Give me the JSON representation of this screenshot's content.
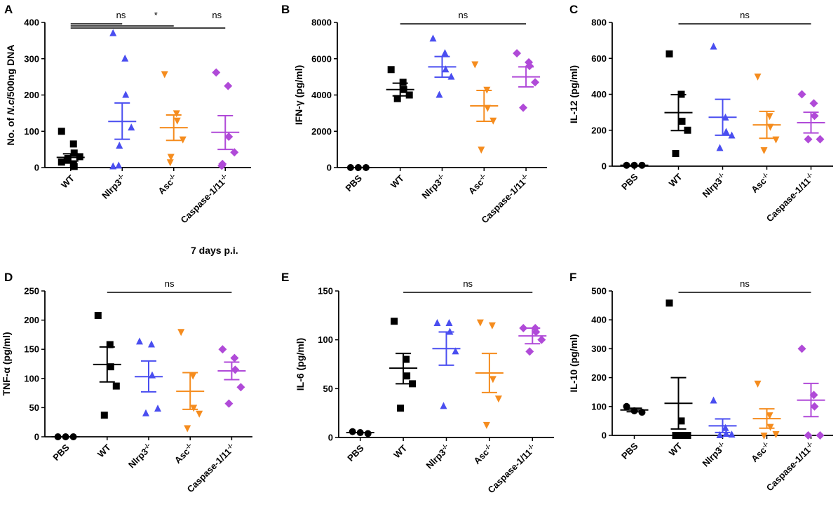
{
  "figure": {
    "footer_label": "7 days p.i."
  },
  "chart_data": [
    {
      "type": "scatter",
      "panel": "A",
      "ylabel": "No. of N.c/500ng DNA",
      "ylim": [
        0,
        400
      ],
      "yticks": [
        0,
        100,
        200,
        300,
        400
      ],
      "categories": [
        {
          "name": "WT",
          "color": "#000000",
          "marker": "square",
          "mean": 28,
          "sem": [
            18,
            38
          ],
          "points": [
            100,
            65,
            40,
            30,
            25,
            20,
            15,
            8,
            3
          ]
        },
        {
          "name": "Nlrp3-/-",
          "base": "Nlrp3",
          "sup": "-/-",
          "color": "#4a4ef0",
          "marker": "triangle-up",
          "mean": 127,
          "sem": [
            78,
            178
          ],
          "points": [
            370,
            300,
            200,
            110,
            60,
            5,
            3
          ]
        },
        {
          "name": "Asc-/-",
          "base": "Asc",
          "sup": "-/-",
          "color": "#f58c1e",
          "marker": "triangle-down",
          "mean": 110,
          "sem": [
            75,
            145
          ],
          "points": [
            258,
            150,
            130,
            78,
            30,
            15
          ]
        },
        {
          "name": "Caspase-1/11-/-",
          "base": "Caspase-1/11",
          "sup": "-/-",
          "color": "#b04ad8",
          "marker": "diamond",
          "mean": 97,
          "sem": [
            50,
            143
          ],
          "points": [
            262,
            225,
            85,
            42,
            10,
            5
          ]
        }
      ],
      "comparisons": [
        {
          "from": 0,
          "to": 1,
          "label": "ns",
          "level": 0
        },
        {
          "from": 0,
          "to": 2,
          "label": "*",
          "level": 1
        },
        {
          "from": 0,
          "to": 3,
          "label": "ns",
          "level": 2
        }
      ]
    },
    {
      "type": "scatter",
      "panel": "B",
      "ylabel": "IFN-γ (pg/ml)",
      "ylim": [
        0,
        8000
      ],
      "yticks": [
        0,
        2000,
        4000,
        6000,
        8000
      ],
      "categories": [
        {
          "name": "PBS",
          "color": "#000000",
          "marker": "circle",
          "mean": 0,
          "sem": [
            0,
            0
          ],
          "points": [
            0,
            0,
            0
          ]
        },
        {
          "name": "WT",
          "color": "#000000",
          "marker": "square",
          "mean": 4300,
          "sem": [
            3950,
            4650
          ],
          "points": [
            5400,
            4700,
            4300,
            4000,
            3800
          ]
        },
        {
          "name": "Nlrp3-/-",
          "base": "Nlrp3",
          "sup": "-/-",
          "color": "#4a4ef0",
          "marker": "triangle-up",
          "mean": 5550,
          "sem": [
            4980,
            6120
          ],
          "points": [
            7100,
            6300,
            5400,
            5000,
            4000
          ]
        },
        {
          "name": "Asc-/-",
          "base": "Asc",
          "sup": "-/-",
          "color": "#f58c1e",
          "marker": "triangle-down",
          "mean": 3400,
          "sem": [
            2550,
            4250
          ],
          "points": [
            5700,
            4300,
            3300,
            2600,
            1000
          ]
        },
        {
          "name": "Caspase-1/11-/-",
          "base": "Caspase-1/11",
          "sup": "-/-",
          "color": "#b04ad8",
          "marker": "diamond",
          "mean": 5000,
          "sem": [
            4450,
            5550
          ],
          "points": [
            6300,
            5800,
            5600,
            4700,
            3300
          ]
        }
      ],
      "comparisons": [
        {
          "from": 1,
          "to": 4,
          "label": "ns",
          "level": 0
        }
      ]
    },
    {
      "type": "scatter",
      "panel": "C",
      "ylabel": "IL-12 (pg/ml)",
      "ylim": [
        0,
        800
      ],
      "yticks": [
        0,
        200,
        400,
        600,
        800
      ],
      "categories": [
        {
          "name": "PBS",
          "color": "#000000",
          "marker": "circle",
          "mean": 5,
          "sem": [
            5,
            5
          ],
          "points": [
            5,
            5,
            5
          ]
        },
        {
          "name": "WT",
          "color": "#000000",
          "marker": "square",
          "mean": 298,
          "sem": [
            198,
            398
          ],
          "points": [
            625,
            400,
            250,
            200,
            70
          ]
        },
        {
          "name": "Nlrp3-/-",
          "base": "Nlrp3",
          "sup": "-/-",
          "color": "#4a4ef0",
          "marker": "triangle-up",
          "mean": 272,
          "sem": [
            172,
            372
          ],
          "points": [
            665,
            270,
            190,
            170,
            100
          ]
        },
        {
          "name": "Asc-/-",
          "base": "Asc",
          "sup": "-/-",
          "color": "#f58c1e",
          "marker": "triangle-down",
          "mean": 230,
          "sem": [
            155,
            305
          ],
          "points": [
            500,
            280,
            220,
            150,
            90
          ]
        },
        {
          "name": "Caspase-1/11-/-",
          "base": "Caspase-1/11",
          "sup": "-/-",
          "color": "#b04ad8",
          "marker": "diamond",
          "mean": 242,
          "sem": [
            185,
            300
          ],
          "points": [
            400,
            350,
            280,
            150,
            150
          ]
        }
      ],
      "comparisons": [
        {
          "from": 1,
          "to": 4,
          "label": "ns",
          "level": 0
        }
      ]
    },
    {
      "type": "scatter",
      "panel": "D",
      "ylabel": "TNF-α (pg/ml)",
      "ylim": [
        0,
        250
      ],
      "yticks": [
        0,
        50,
        100,
        150,
        200,
        250
      ],
      "categories": [
        {
          "name": "PBS",
          "color": "#000000",
          "marker": "circle",
          "mean": 0,
          "sem": [
            0,
            0
          ],
          "points": [
            0,
            0,
            0
          ]
        },
        {
          "name": "WT",
          "color": "#000000",
          "marker": "square",
          "mean": 124,
          "sem": [
            94,
            154
          ],
          "points": [
            208,
            158,
            120,
            87,
            37
          ]
        },
        {
          "name": "Nlrp3-/-",
          "base": "Nlrp3",
          "sup": "-/-",
          "color": "#4a4ef0",
          "marker": "triangle-up",
          "mean": 103,
          "sem": [
            77,
            130
          ],
          "points": [
            163,
            158,
            105,
            48,
            40
          ]
        },
        {
          "name": "Asc-/-",
          "base": "Asc",
          "sup": "-/-",
          "color": "#f58c1e",
          "marker": "triangle-down",
          "mean": 78,
          "sem": [
            47,
            110
          ],
          "points": [
            180,
            105,
            50,
            40,
            15
          ]
        },
        {
          "name": "Caspase-1/11-/-",
          "base": "Caspase-1/11",
          "sup": "-/-",
          "color": "#b04ad8",
          "marker": "diamond",
          "mean": 113,
          "sem": [
            98,
            128
          ],
          "points": [
            150,
            135,
            115,
            85,
            57
          ]
        }
      ],
      "comparisons": [
        {
          "from": 1,
          "to": 4,
          "label": "ns",
          "level": 0
        }
      ]
    },
    {
      "type": "scatter",
      "panel": "E",
      "ylabel": "IL-6 (pg/ml)",
      "ylim": [
        0,
        150
      ],
      "yticks": [
        0,
        50,
        100,
        150
      ],
      "categories": [
        {
          "name": "PBS",
          "color": "#000000",
          "marker": "circle",
          "mean": 5,
          "sem": [
            5,
            5
          ],
          "points": [
            6,
            5,
            4
          ]
        },
        {
          "name": "WT",
          "color": "#000000",
          "marker": "square",
          "mean": 71,
          "sem": [
            55,
            86
          ],
          "points": [
            119,
            80,
            63,
            55,
            30
          ]
        },
        {
          "name": "Nlrp3-/-",
          "base": "Nlrp3",
          "sup": "-/-",
          "color": "#4a4ef0",
          "marker": "triangle-up",
          "mean": 91,
          "sem": [
            74,
            108
          ],
          "points": [
            117,
            117,
            108,
            88,
            32
          ]
        },
        {
          "name": "Asc-/-",
          "base": "Asc",
          "sup": "-/-",
          "color": "#f58c1e",
          "marker": "triangle-down",
          "mean": 66,
          "sem": [
            46,
            86
          ],
          "points": [
            118,
            115,
            60,
            40,
            13
          ]
        },
        {
          "name": "Caspase-1/11-/-",
          "base": "Caspase-1/11",
          "sup": "-/-",
          "color": "#b04ad8",
          "marker": "diamond",
          "mean": 104,
          "sem": [
            96,
            112
          ],
          "points": [
            112,
            112,
            108,
            100,
            88
          ]
        }
      ],
      "comparisons": [
        {
          "from": 1,
          "to": 4,
          "label": "ns",
          "level": 0
        }
      ]
    },
    {
      "type": "scatter",
      "panel": "F",
      "ylabel": "IL-10 (pg/ml)",
      "ylim": [
        0,
        500
      ],
      "yticks": [
        0,
        100,
        200,
        300,
        400,
        500
      ],
      "categories": [
        {
          "name": "PBS",
          "color": "#000000",
          "marker": "circle",
          "mean": 88,
          "sem": [
            82,
            94
          ],
          "points": [
            100,
            85,
            80
          ]
        },
        {
          "name": "WT",
          "color": "#000000",
          "marker": "square",
          "mean": 111,
          "sem": [
            22,
            200
          ],
          "points": [
            458,
            50,
            0,
            0,
            0
          ]
        },
        {
          "name": "Nlrp3-/-",
          "base": "Nlrp3",
          "sup": "-/-",
          "color": "#4a4ef0",
          "marker": "triangle-up",
          "mean": 33,
          "sem": [
            10,
            57
          ],
          "points": [
            120,
            25,
            5,
            2,
            0
          ]
        },
        {
          "name": "Asc-/-",
          "base": "Asc",
          "sup": "-/-",
          "color": "#f58c1e",
          "marker": "triangle-down",
          "mean": 58,
          "sem": [
            25,
            92
          ],
          "points": [
            180,
            70,
            30,
            5,
            0
          ]
        },
        {
          "name": "Caspase-1/11-/-",
          "base": "Caspase-1/11",
          "sup": "-/-",
          "color": "#b04ad8",
          "marker": "diamond",
          "mean": 122,
          "sem": [
            65,
            180
          ],
          "points": [
            300,
            140,
            100,
            0,
            0
          ]
        }
      ],
      "comparisons": [
        {
          "from": 1,
          "to": 4,
          "label": "ns",
          "level": 0
        }
      ]
    }
  ]
}
